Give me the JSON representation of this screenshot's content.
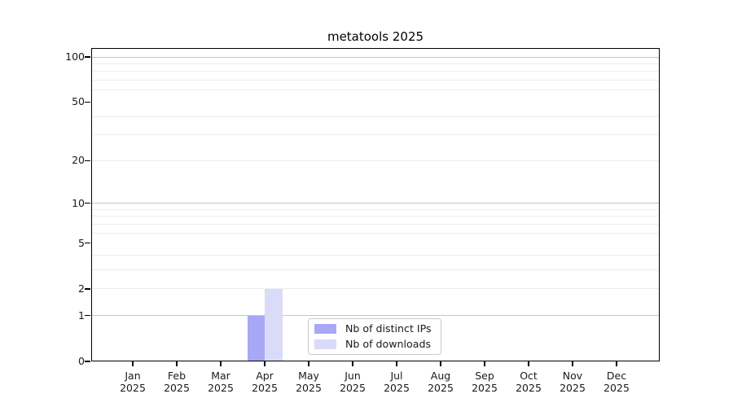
{
  "chart_data": {
    "type": "bar",
    "title": "metatools 2025",
    "categories": [
      "Jan",
      "Feb",
      "Mar",
      "Apr",
      "May",
      "Jun",
      "Jul",
      "Aug",
      "Sep",
      "Oct",
      "Nov",
      "Dec"
    ],
    "category_year": "2025",
    "series": [
      {
        "name": "Nb of distinct IPs",
        "color": "#a8a8f6",
        "values": [
          0,
          0,
          0,
          1,
          0,
          0,
          0,
          0,
          0,
          0,
          0,
          0
        ]
      },
      {
        "name": "Nb of downloads",
        "color": "#dadaf9",
        "values": [
          0,
          0,
          0,
          2,
          0,
          0,
          0,
          0,
          0,
          0,
          0,
          0
        ]
      }
    ],
    "y_ticks": [
      0,
      1,
      2,
      5,
      10,
      20,
      50,
      100
    ],
    "y_major_grid": [
      1,
      10,
      100
    ],
    "y_minor_grid": [
      2,
      3,
      4,
      6,
      7,
      8,
      9,
      20,
      30,
      40,
      60,
      70,
      80,
      90
    ],
    "y_scale": "log10(1+v)",
    "ylim": [
      0,
      115
    ],
    "grid": true,
    "legend_position": "lower center",
    "colors": {
      "axis": "#000000",
      "text": "#1a1a1a",
      "grid_major": "#c6c6c6",
      "grid_minor": "#ededed",
      "legend_border": "#c9c9c9",
      "background": "#ffffff"
    }
  }
}
